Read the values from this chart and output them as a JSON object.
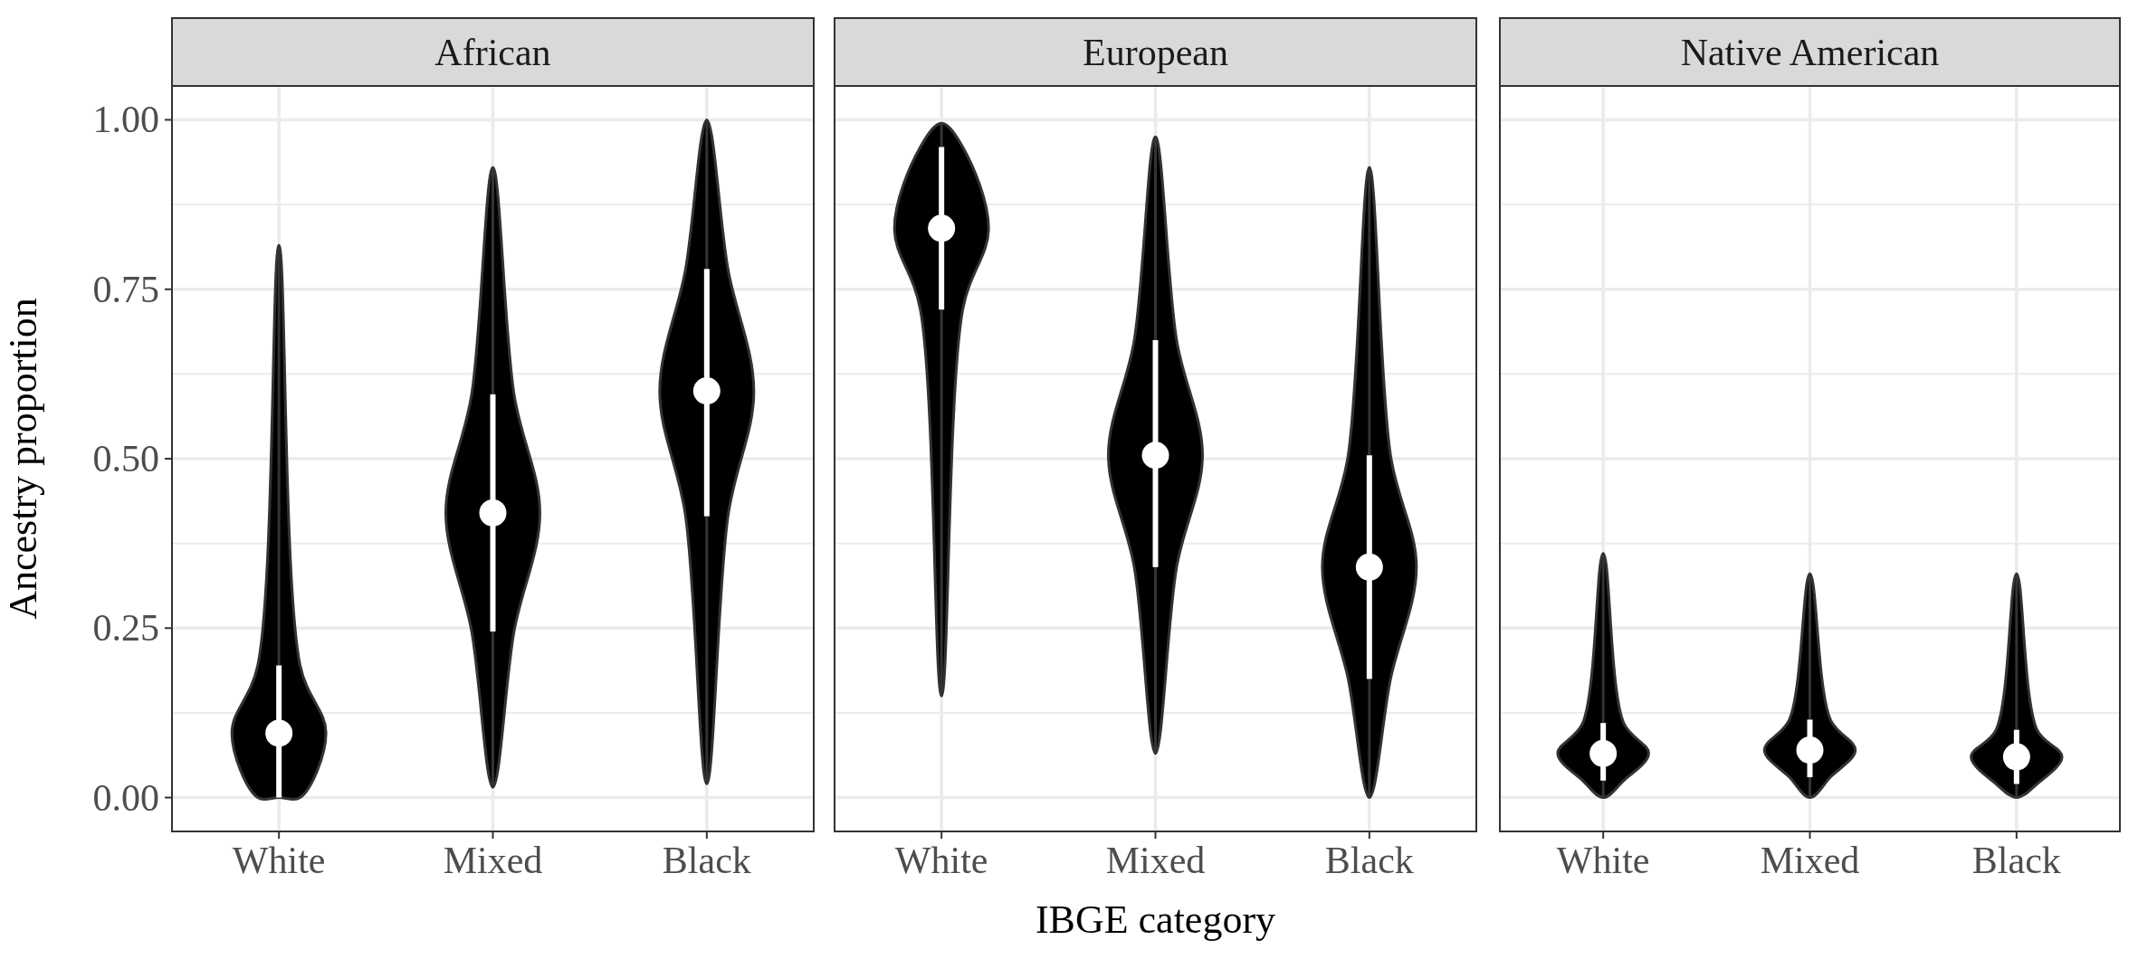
{
  "chart_data": [
    {
      "type": "box",
      "title": "African",
      "ylabel": "Ancestry proportion",
      "categories": [
        "White",
        "Mixed",
        "Black"
      ],
      "ylim": [
        -0.05,
        1.05
      ],
      "yticks": [
        {
          "value": 0,
          "label": "0.00"
        },
        {
          "value": 0.25,
          "label": "0.25"
        },
        {
          "value": 0.5,
          "label": "0.50"
        },
        {
          "value": 0.75,
          "label": "0.75"
        },
        {
          "value": 1,
          "label": "1.00"
        }
      ],
      "grid": true,
      "series": [
        {
          "color": "#ffffff",
          "boxes": [
            {
              "low": 0,
              "q1": 0,
              "median": 0.095,
              "q3": 0.195,
              "high": 0.815
            },
            {
              "low": 0.015,
              "q1": 0.245,
              "median": 0.42,
              "q3": 0.595,
              "high": 0.93
            },
            {
              "low": 0.02,
              "q1": 0.415,
              "median": 0.6,
              "q3": 0.78,
              "high": 1.0
            }
          ]
        }
      ]
    },
    {
      "type": "box",
      "title": "European",
      "xlabel": "IBGE category",
      "categories": [
        "White",
        "Mixed",
        "Black"
      ],
      "ylim": [
        -0.05,
        1.05
      ],
      "yticks": [
        0,
        0.25,
        0.5,
        0.75,
        1
      ],
      "grid": true,
      "tick_labels": "x",
      "series": [
        {
          "color": "#ffffff",
          "boxes": [
            {
              "low": 0.15,
              "q1": 0.72,
              "median": 0.84,
              "q3": 0.96,
              "high": 0.995
            },
            {
              "low": 0.065,
              "q1": 0.34,
              "median": 0.505,
              "q3": 0.675,
              "high": 0.975
            },
            {
              "low": 0,
              "q1": 0.175,
              "median": 0.34,
              "q3": 0.505,
              "high": 0.93
            }
          ]
        }
      ]
    },
    {
      "type": "box",
      "title": "Native American",
      "categories": [
        "White",
        "Mixed",
        "Black"
      ],
      "ylim": [
        -0.05,
        1.05
      ],
      "yticks": [
        0,
        0.25,
        0.5,
        0.75,
        1
      ],
      "grid": true,
      "tick_labels": "x",
      "series": [
        {
          "color": "#ffffff",
          "boxes": [
            {
              "low": 0,
              "q1": 0.025,
              "median": 0.065,
              "q3": 0.11,
              "high": 0.36
            },
            {
              "low": 0,
              "q1": 0.03,
              "median": 0.07,
              "q3": 0.115,
              "high": 0.33
            },
            {
              "low": 0,
              "q1": 0.02,
              "median": 0.06,
              "q3": 0.1,
              "high": 0.33
            }
          ]
        }
      ]
    }
  ]
}
